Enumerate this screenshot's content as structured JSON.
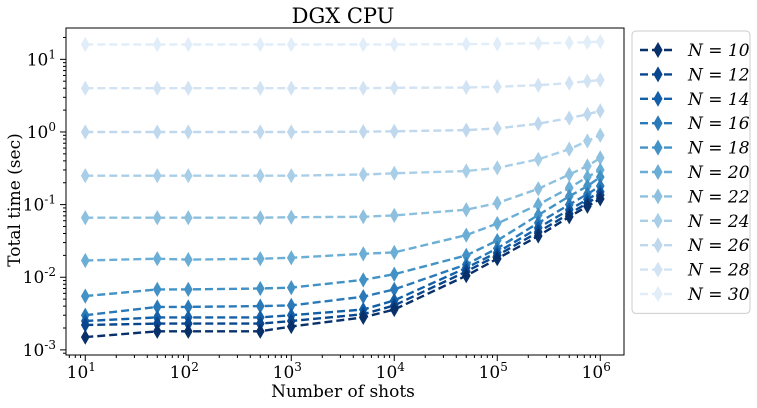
{
  "chart_data": {
    "type": "line",
    "title": "DGX CPU",
    "xlabel": "Number of shots",
    "ylabel": "Total time (sec)",
    "x_scale": "log",
    "y_scale": "log",
    "xlim": [
      6.5,
      1700000
    ],
    "ylim": [
      0.00085,
      27
    ],
    "x_ticks": [
      {
        "value": 10,
        "base": "10",
        "exp": "1"
      },
      {
        "value": 100,
        "base": "10",
        "exp": "2"
      },
      {
        "value": 1000,
        "base": "10",
        "exp": "3"
      },
      {
        "value": 10000,
        "base": "10",
        "exp": "4"
      },
      {
        "value": 100000,
        "base": "10",
        "exp": "5"
      },
      {
        "value": 1000000,
        "base": "10",
        "exp": "6"
      }
    ],
    "y_ticks": [
      {
        "value": 0.001,
        "base": "10",
        "exp": "-3"
      },
      {
        "value": 0.01,
        "base": "10",
        "exp": "-2"
      },
      {
        "value": 0.1,
        "base": "10",
        "exp": "-1"
      },
      {
        "value": 1,
        "base": "10",
        "exp": "0"
      },
      {
        "value": 10,
        "base": "10",
        "exp": "1"
      }
    ],
    "grid": false,
    "legend_position": "outside-right",
    "marker": "thin-diamond",
    "line_style": "dashed",
    "x": [
      10,
      50,
      100,
      500,
      1000,
      5000,
      10000,
      50000,
      100000,
      250000,
      500000,
      750000,
      1000000
    ],
    "series": [
      {
        "name": "N = 10",
        "color": "#08306b",
        "values": [
          0.0015,
          0.0018,
          0.0018,
          0.0018,
          0.0021,
          0.0028,
          0.0036,
          0.0105,
          0.018,
          0.037,
          0.068,
          0.095,
          0.12
        ]
      },
      {
        "name": "N = 12",
        "color": "#08468e",
        "values": [
          0.0022,
          0.0023,
          0.0023,
          0.0023,
          0.0025,
          0.0031,
          0.0041,
          0.012,
          0.02,
          0.042,
          0.075,
          0.105,
          0.135
        ]
      },
      {
        "name": "N = 14",
        "color": "#1460a8",
        "values": [
          0.0025,
          0.0028,
          0.0028,
          0.0028,
          0.003,
          0.0036,
          0.0048,
          0.0135,
          0.022,
          0.048,
          0.085,
          0.118,
          0.15
        ]
      },
      {
        "name": "N = 16",
        "color": "#2a7ab9",
        "values": [
          0.003,
          0.0039,
          0.0039,
          0.004,
          0.0041,
          0.0054,
          0.0068,
          0.015,
          0.025,
          0.056,
          0.1,
          0.14,
          0.18
        ]
      },
      {
        "name": "N = 18",
        "color": "#4292c6",
        "values": [
          0.0055,
          0.0068,
          0.0068,
          0.007,
          0.0072,
          0.0092,
          0.011,
          0.02,
          0.032,
          0.072,
          0.13,
          0.18,
          0.24
        ]
      },
      {
        "name": "N = 20",
        "color": "#6aaed6",
        "values": [
          0.017,
          0.018,
          0.0175,
          0.018,
          0.0185,
          0.021,
          0.022,
          0.038,
          0.055,
          0.1,
          0.17,
          0.24,
          0.3
        ]
      },
      {
        "name": "N = 22",
        "color": "#8dc0de",
        "values": [
          0.066,
          0.066,
          0.066,
          0.066,
          0.067,
          0.068,
          0.071,
          0.085,
          0.105,
          0.165,
          0.26,
          0.34,
          0.44
        ]
      },
      {
        "name": "N = 24",
        "color": "#a8cfe7",
        "values": [
          0.25,
          0.25,
          0.25,
          0.25,
          0.25,
          0.26,
          0.27,
          0.29,
          0.32,
          0.42,
          0.58,
          0.75,
          0.9
        ]
      },
      {
        "name": "N = 26",
        "color": "#bfd8ee",
        "values": [
          1.0,
          1.0,
          1.0,
          1.0,
          1.0,
          1.01,
          1.02,
          1.06,
          1.12,
          1.3,
          1.55,
          1.75,
          1.95
        ]
      },
      {
        "name": "N = 28",
        "color": "#d2e3f3",
        "values": [
          4.0,
          4.0,
          4.0,
          4.0,
          4.0,
          4.0,
          4.05,
          4.1,
          4.2,
          4.4,
          4.7,
          5.0,
          5.2
        ]
      },
      {
        "name": "N = 30",
        "color": "#e1edf8",
        "values": [
          16.0,
          16.0,
          16.0,
          16.0,
          16.0,
          16.0,
          16.0,
          16.2,
          16.3,
          16.6,
          16.9,
          17.2,
          17.5
        ]
      }
    ]
  }
}
